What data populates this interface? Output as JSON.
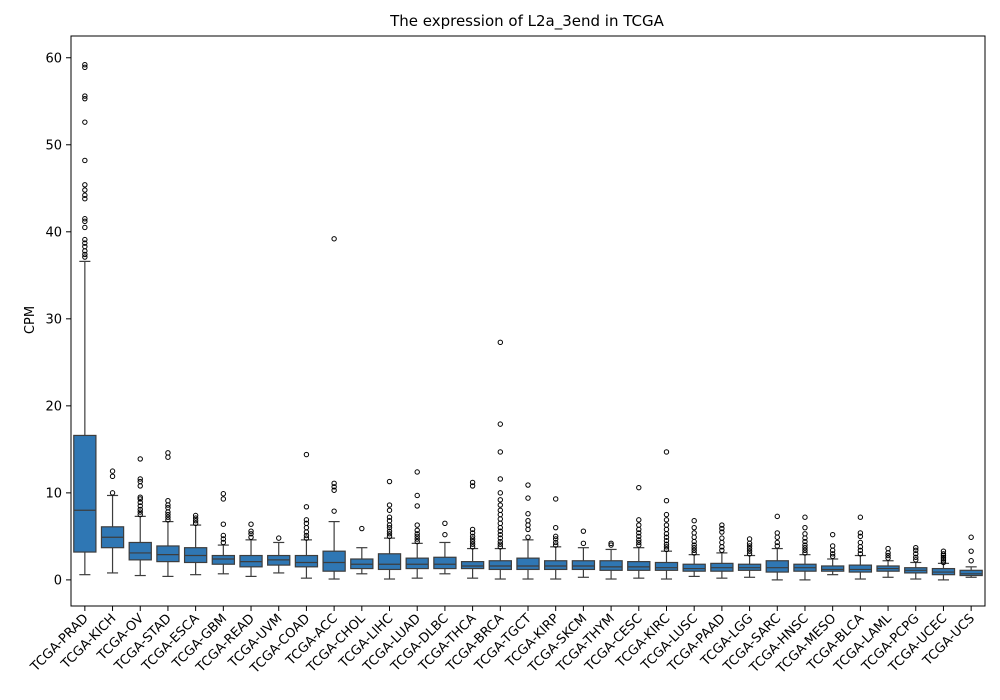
{
  "chart_data": {
    "type": "box",
    "title": "The expression of L2a_3end in TCGA",
    "xlabel": "",
    "ylabel": "CPM",
    "ylim": [
      -3,
      62.5
    ],
    "yticks": [
      0,
      10,
      20,
      30,
      40,
      50,
      60
    ],
    "grid": false,
    "box_color": "#2f77b4",
    "categories": [
      "TCGA-PRAD",
      "TCGA-KICH",
      "TCGA-OV",
      "TCGA-STAD",
      "TCGA-ESCA",
      "TCGA-GBM",
      "TCGA-READ",
      "TCGA-UVM",
      "TCGA-COAD",
      "TCGA-ACC",
      "TCGA-CHOL",
      "TCGA-LIHC",
      "TCGA-LUAD",
      "TCGA-DLBC",
      "TCGA-THCA",
      "TCGA-BRCA",
      "TCGA-TGCT",
      "TCGA-KIRP",
      "TCGA-SKCM",
      "TCGA-THYM",
      "TCGA-CESC",
      "TCGA-KIRC",
      "TCGA-LUSC",
      "TCGA-PAAD",
      "TCGA-LGG",
      "TCGA-SARC",
      "TCGA-HNSC",
      "TCGA-MESO",
      "TCGA-BLCA",
      "TCGA-LAML",
      "TCGA-PCPG",
      "TCGA-UCEC",
      "TCGA-UCS"
    ],
    "boxes": [
      {
        "min": 0.6,
        "q1": 3.2,
        "median": 8.0,
        "q3": 16.6,
        "max": 36.6,
        "outliers": [
          37.1,
          37.4,
          37.8,
          38.3,
          38.7,
          39.1,
          40.5,
          41.2,
          41.5,
          43.8,
          44.2,
          44.8,
          45.4,
          48.2,
          52.6,
          55.3,
          55.6,
          58.9,
          59.2
        ]
      },
      {
        "min": 0.8,
        "q1": 3.7,
        "median": 4.9,
        "q3": 6.1,
        "max": 9.7,
        "outliers": [
          10.0,
          11.9,
          12.5
        ]
      },
      {
        "min": 0.5,
        "q1": 2.3,
        "median": 3.1,
        "q3": 4.3,
        "max": 7.3,
        "outliers": [
          7.5,
          7.8,
          8.1,
          8.5,
          8.9,
          9.3,
          9.5,
          10.8,
          11.3,
          11.6,
          13.9
        ]
      },
      {
        "min": 0.4,
        "q1": 2.1,
        "median": 2.9,
        "q3": 3.9,
        "max": 6.7,
        "outliers": [
          6.9,
          7.2,
          7.5,
          7.8,
          8.3,
          8.6,
          9.1,
          14.1,
          14.6
        ]
      },
      {
        "min": 0.6,
        "q1": 2.0,
        "median": 2.8,
        "q3": 3.7,
        "max": 6.3,
        "outliers": [
          6.5,
          6.8,
          7.1,
          7.4
        ]
      },
      {
        "min": 0.7,
        "q1": 1.8,
        "median": 2.4,
        "q3": 2.8,
        "max": 4.0,
        "outliers": [
          4.3,
          4.7,
          5.1,
          6.4,
          9.3,
          9.9
        ]
      },
      {
        "min": 0.4,
        "q1": 1.5,
        "median": 2.1,
        "q3": 2.8,
        "max": 4.6,
        "outliers": [
          4.9,
          5.3,
          5.6,
          6.4
        ]
      },
      {
        "min": 0.8,
        "q1": 1.7,
        "median": 2.3,
        "q3": 2.8,
        "max": 4.3,
        "outliers": [
          4.8
        ]
      },
      {
        "min": 0.2,
        "q1": 1.5,
        "median": 2.0,
        "q3": 2.8,
        "max": 4.6,
        "outliers": [
          4.8,
          5.1,
          5.5,
          6.0,
          6.5,
          6.9,
          8.4,
          14.4
        ]
      },
      {
        "min": 0.1,
        "q1": 1.0,
        "median": 2.0,
        "q3": 3.3,
        "max": 6.7,
        "outliers": [
          7.9,
          10.3,
          10.7,
          11.1,
          39.2
        ]
      },
      {
        "min": 0.7,
        "q1": 1.3,
        "median": 1.8,
        "q3": 2.4,
        "max": 3.7,
        "outliers": [
          5.9
        ]
      },
      {
        "min": 0.1,
        "q1": 1.2,
        "median": 1.8,
        "q3": 3.0,
        "max": 4.8,
        "outliers": [
          5.0,
          5.3,
          5.6,
          6.0,
          6.3,
          6.8,
          7.2,
          8.0,
          8.6,
          11.3
        ]
      },
      {
        "min": 0.2,
        "q1": 1.3,
        "median": 1.8,
        "q3": 2.5,
        "max": 4.2,
        "outliers": [
          4.4,
          4.7,
          5.0,
          5.3,
          5.7,
          6.3,
          8.5,
          9.7,
          12.4
        ]
      },
      {
        "min": 0.7,
        "q1": 1.3,
        "median": 1.8,
        "q3": 2.6,
        "max": 4.3,
        "outliers": [
          5.2,
          6.5
        ]
      },
      {
        "min": 0.2,
        "q1": 1.3,
        "median": 1.6,
        "q3": 2.1,
        "max": 3.6,
        "outliers": [
          3.8,
          4.1,
          4.4,
          4.7,
          5.0,
          5.4,
          5.8,
          10.8,
          11.2
        ]
      },
      {
        "min": 0.1,
        "q1": 1.2,
        "median": 1.6,
        "q3": 2.2,
        "max": 3.6,
        "outliers": [
          3.8,
          4.1,
          4.4,
          4.8,
          5.2,
          5.6,
          6.0,
          6.5,
          7.0,
          7.5,
          8.0,
          8.6,
          9.2,
          10.0,
          11.6,
          14.7,
          17.9,
          27.3
        ]
      },
      {
        "min": 0.1,
        "q1": 1.2,
        "median": 1.6,
        "q3": 2.5,
        "max": 4.6,
        "outliers": [
          4.9,
          5.8,
          6.3,
          6.8,
          7.6,
          9.4,
          10.9
        ]
      },
      {
        "min": 0.1,
        "q1": 1.2,
        "median": 1.6,
        "q3": 2.2,
        "max": 3.8,
        "outliers": [
          4.0,
          4.3,
          4.7,
          5.0,
          6.0,
          9.3
        ]
      },
      {
        "min": 0.3,
        "q1": 1.2,
        "median": 1.6,
        "q3": 2.2,
        "max": 3.7,
        "outliers": [
          4.2,
          5.6
        ]
      },
      {
        "min": 0.1,
        "q1": 1.1,
        "median": 1.5,
        "q3": 2.2,
        "max": 3.5,
        "outliers": [
          4.0,
          4.2
        ]
      },
      {
        "min": 0.2,
        "q1": 1.1,
        "median": 1.5,
        "q3": 2.1,
        "max": 3.7,
        "outliers": [
          4.0,
          4.3,
          4.6,
          5.0,
          5.4,
          5.8,
          6.3,
          6.9,
          10.6
        ]
      },
      {
        "min": 0.1,
        "q1": 1.1,
        "median": 1.4,
        "q3": 2.0,
        "max": 3.3,
        "outliers": [
          3.5,
          3.8,
          4.1,
          4.5,
          4.9,
          5.3,
          5.8,
          6.3,
          6.9,
          7.5,
          9.1,
          14.7
        ]
      },
      {
        "min": 0.4,
        "q1": 1.0,
        "median": 1.3,
        "q3": 1.8,
        "max": 2.9,
        "outliers": [
          3.1,
          3.4,
          3.7,
          4.0,
          4.4,
          4.9,
          5.4,
          6.0,
          6.8
        ]
      },
      {
        "min": 0.2,
        "q1": 1.0,
        "median": 1.4,
        "q3": 1.9,
        "max": 3.1,
        "outliers": [
          3.4,
          3.8,
          4.3,
          4.8,
          5.5,
          5.9,
          6.3
        ]
      },
      {
        "min": 0.3,
        "q1": 1.1,
        "median": 1.4,
        "q3": 1.8,
        "max": 2.8,
        "outliers": [
          3.0,
          3.3,
          3.6,
          3.9,
          4.2,
          4.7
        ]
      },
      {
        "min": 0.0,
        "q1": 0.9,
        "median": 1.4,
        "q3": 2.2,
        "max": 3.6,
        "outliers": [
          3.9,
          4.3,
          4.9,
          5.4,
          7.3
        ]
      },
      {
        "min": 0.0,
        "q1": 1.0,
        "median": 1.4,
        "q3": 1.8,
        "max": 2.9,
        "outliers": [
          3.1,
          3.4,
          3.7,
          4.0,
          4.4,
          4.8,
          5.3,
          6.0,
          7.2
        ]
      },
      {
        "min": 0.6,
        "q1": 1.0,
        "median": 1.2,
        "q3": 1.6,
        "max": 2.4,
        "outliers": [
          2.7,
          3.0,
          3.4,
          3.9,
          5.2
        ]
      },
      {
        "min": 0.1,
        "q1": 0.9,
        "median": 1.2,
        "q3": 1.7,
        "max": 2.8,
        "outliers": [
          3.0,
          3.4,
          3.8,
          4.3,
          5.0,
          5.4,
          7.2
        ]
      },
      {
        "min": 0.3,
        "q1": 1.0,
        "median": 1.3,
        "q3": 1.6,
        "max": 2.2,
        "outliers": [
          2.5,
          2.8,
          3.1,
          3.6
        ]
      },
      {
        "min": 0.1,
        "q1": 0.8,
        "median": 1.1,
        "q3": 1.4,
        "max": 2.0,
        "outliers": [
          2.3,
          2.6,
          3.0,
          3.4,
          3.7
        ]
      },
      {
        "min": 0.0,
        "q1": 0.6,
        "median": 0.9,
        "q3": 1.3,
        "max": 1.9,
        "outliers": [
          2.0,
          2.2,
          2.4,
          2.6,
          2.8,
          3.0,
          3.3
        ]
      },
      {
        "min": 0.3,
        "q1": 0.5,
        "median": 0.7,
        "q3": 1.1,
        "max": 1.5,
        "outliers": [
          2.2,
          3.3,
          4.9
        ]
      }
    ]
  }
}
